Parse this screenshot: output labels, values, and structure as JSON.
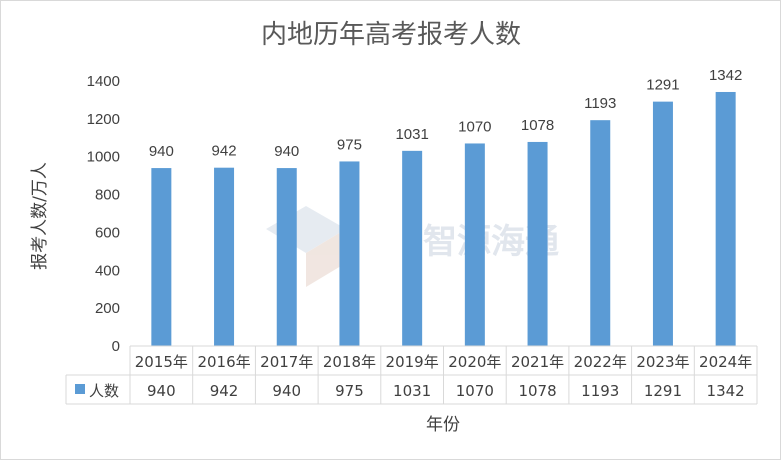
{
  "watermark": "智源海通",
  "colors": {
    "bar": "#5b9bd5",
    "grid": "#d9d9d9",
    "text": "#404040"
  },
  "chart_data": {
    "type": "bar",
    "title": "内地历年高考报考人数",
    "xlabel": "年份",
    "ylabel": "报考人数/万人",
    "categories": [
      "2015年",
      "2016年",
      "2017年",
      "2018年",
      "2019年",
      "2020年",
      "2021年",
      "2022年",
      "2023年",
      "2024年"
    ],
    "series": [
      {
        "name": "人数",
        "values": [
          940,
          942,
          940,
          975,
          1031,
          1070,
          1078,
          1193,
          1291,
          1342
        ]
      }
    ],
    "ylim": [
      0,
      1400
    ],
    "yticks": [
      0,
      200,
      400,
      600,
      800,
      1000,
      1200,
      1400
    ],
    "grid": false,
    "legend": "data-table"
  }
}
